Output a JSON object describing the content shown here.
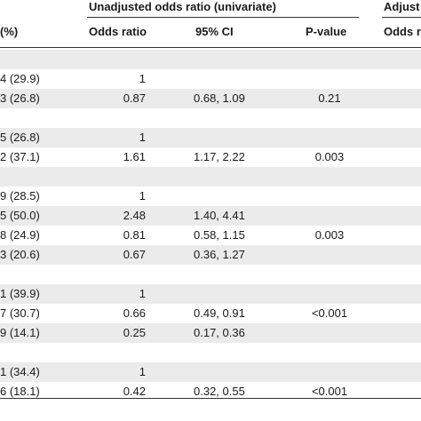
{
  "header": {
    "group_unadjusted": "Unadjusted odds ratio (univariate)",
    "group_adjusted": "Adjust",
    "col_n_pct": "(%)",
    "col_or": "Odds ratio",
    "col_ci": "95% CI",
    "col_p": "P-value",
    "col_adj_or": "Odds r"
  },
  "rows": [
    {
      "n": "",
      "or": "",
      "ci": "",
      "p": "",
      "shaded": true
    },
    {
      "n": "4 (29.9)",
      "or": "1",
      "ci": "",
      "p": "",
      "shaded": false
    },
    {
      "n": "3 (26.8)",
      "or": "0.87",
      "ci": "0.68, 1.09",
      "p": "0.21",
      "shaded": true
    },
    {
      "n": "",
      "or": "",
      "ci": "",
      "p": "",
      "shaded": false
    },
    {
      "n": "5 (26.8)",
      "or": "1",
      "ci": "",
      "p": "",
      "shaded": true
    },
    {
      "n": "2 (37.1)",
      "or": "1.61",
      "ci": "1.17, 2.22",
      "p": "0.003",
      "shaded": false
    },
    {
      "n": "",
      "or": "",
      "ci": "",
      "p": "",
      "shaded": true
    },
    {
      "n": "9 (28.5)",
      "or": "1",
      "ci": "",
      "p": "",
      "shaded": false
    },
    {
      "n": "5 (50.0)",
      "or": "2.48",
      "ci": "1.40, 4.41",
      "p": "",
      "shaded": true
    },
    {
      "n": "8 (24.9)",
      "or": "0.81",
      "ci": "0.58, 1.15",
      "p": "0.003",
      "shaded": false
    },
    {
      "n": "3 (20.6)",
      "or": "0.67",
      "ci": "0.36, 1.27",
      "p": "",
      "shaded": true
    },
    {
      "n": "",
      "or": "",
      "ci": "",
      "p": "",
      "shaded": false
    },
    {
      "n": "1 (39.9)",
      "or": "1",
      "ci": "",
      "p": "",
      "shaded": true
    },
    {
      "n": "7 (30.7)",
      "or": "0.66",
      "ci": "0.49, 0.91",
      "p": "<0.001",
      "shaded": false
    },
    {
      "n": "9 (14.1)",
      "or": "0.25",
      "ci": "0.17, 0.36",
      "p": "",
      "shaded": true
    },
    {
      "n": "",
      "or": "",
      "ci": "",
      "p": "",
      "shaded": false
    },
    {
      "n": "1 (34.4)",
      "or": "1",
      "ci": "",
      "p": "",
      "shaded": true
    },
    {
      "n": "6 (18.1)",
      "or": "0.42",
      "ci": "0.32, 0.55",
      "p": "<0.001",
      "shaded": false
    }
  ]
}
